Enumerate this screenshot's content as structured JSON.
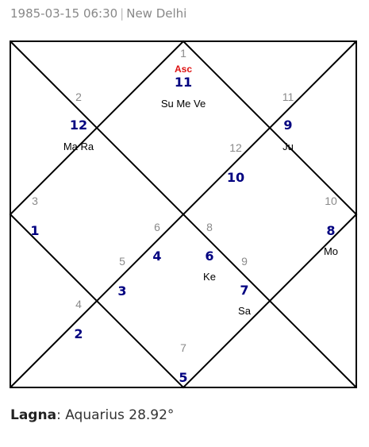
{
  "header": {
    "datetime": "1985-03-15 06:30",
    "separator": "|",
    "place": "New Delhi"
  },
  "chart": {
    "asc_label": "Asc",
    "colors": {
      "house_number": "#8a8a8a",
      "sign_number": "#000080",
      "planets": "#000000",
      "asc": "#dd1111",
      "lines": "#000000"
    },
    "houses": [
      {
        "house": "1",
        "sign": "11",
        "planets": "Su Me Ve"
      },
      {
        "house": "2",
        "sign": "12",
        "planets": "Ma Ra"
      },
      {
        "house": "3",
        "sign": "1",
        "planets": ""
      },
      {
        "house": "4",
        "sign": "2",
        "planets": ""
      },
      {
        "house": "5",
        "sign": "3",
        "planets": ""
      },
      {
        "house": "6",
        "sign": "4",
        "planets": ""
      },
      {
        "house": "7",
        "sign": "5",
        "planets": ""
      },
      {
        "house": "8",
        "sign": "6",
        "planets": "Ke"
      },
      {
        "house": "9",
        "sign": "7",
        "planets": "Sa"
      },
      {
        "house": "10",
        "sign": "8",
        "planets": "Mo"
      },
      {
        "house": "11",
        "sign": "9",
        "planets": "Ju"
      },
      {
        "house": "12",
        "sign": "10",
        "planets": ""
      }
    ]
  },
  "lagna": {
    "label": "Lagna",
    "value": "Aquarius 28.92°"
  }
}
